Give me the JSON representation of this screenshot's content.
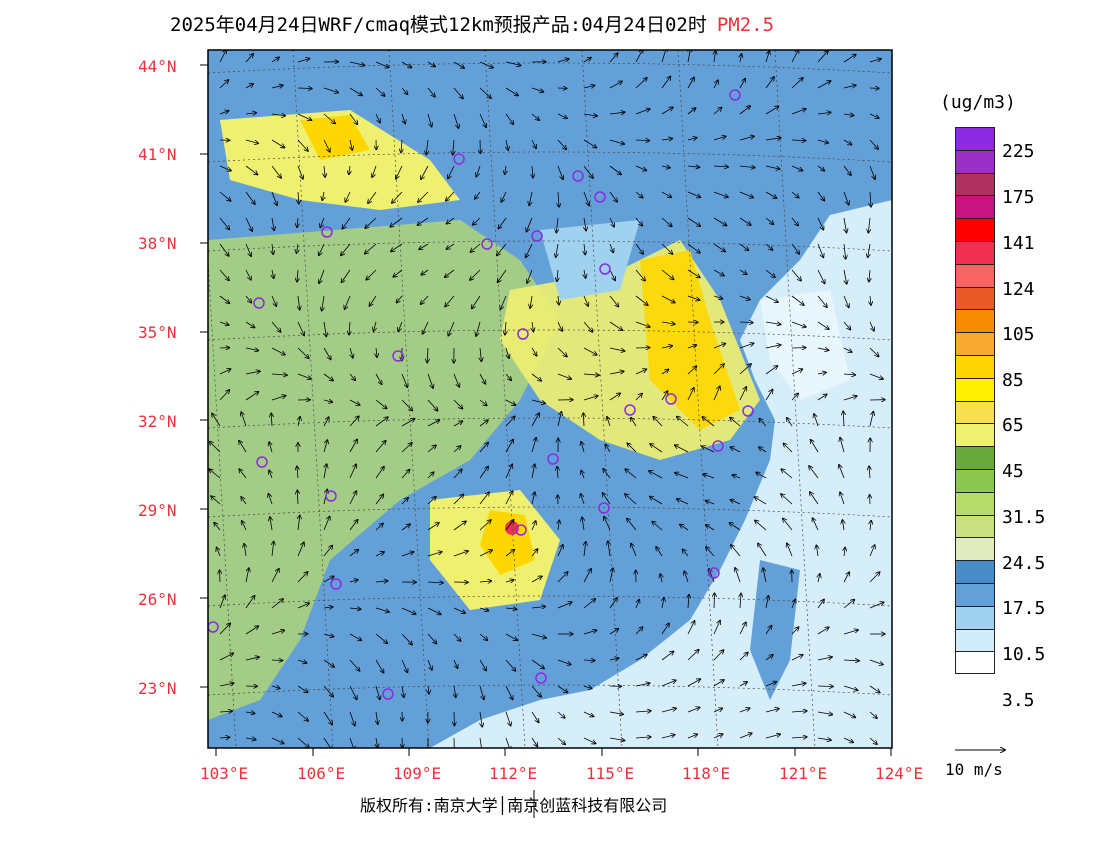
{
  "header": {
    "title": "2025年04月24日WRF/cmaq模式12km预报产品:04月24日02时",
    "pollutant": "PM2.5"
  },
  "axes": {
    "lat_labels": [
      "44°N",
      "41°N",
      "38°N",
      "35°N",
      "32°N",
      "29°N",
      "26°N",
      "23°N"
    ],
    "lon_labels": [
      "103°E",
      "106°E",
      "109°E",
      "112°E",
      "115°E",
      "118°E",
      "121°E",
      "124°E"
    ]
  },
  "legend": {
    "units": "(ug/m3)",
    "colors": [
      "#8b2be2",
      "#9b30c8",
      "#b03060",
      "#c81480",
      "#ff0000",
      "#f03050",
      "#f86464",
      "#e85a28",
      "#f88c00",
      "#f8aa30",
      "#ffd700",
      "#fff000",
      "#f8e050",
      "#f0f070",
      "#6aaa3c",
      "#8cc850",
      "#b8dc6c",
      "#c8e080",
      "#e0ecc0",
      "#4a8cc8",
      "#64a0d8",
      "#a0d2f0",
      "#d0ecf8",
      "#ffffff"
    ],
    "labels": [
      "225",
      "175",
      "141",
      "124",
      "105",
      "85",
      "65",
      "45",
      "31.5",
      "24.5",
      "17.5",
      "10.5",
      "3.5"
    ]
  },
  "wind_reference": {
    "label": "10 m/s"
  },
  "footer": {
    "copyright": "版权所有:南京大学│南京创蓝科技有限公司"
  }
}
